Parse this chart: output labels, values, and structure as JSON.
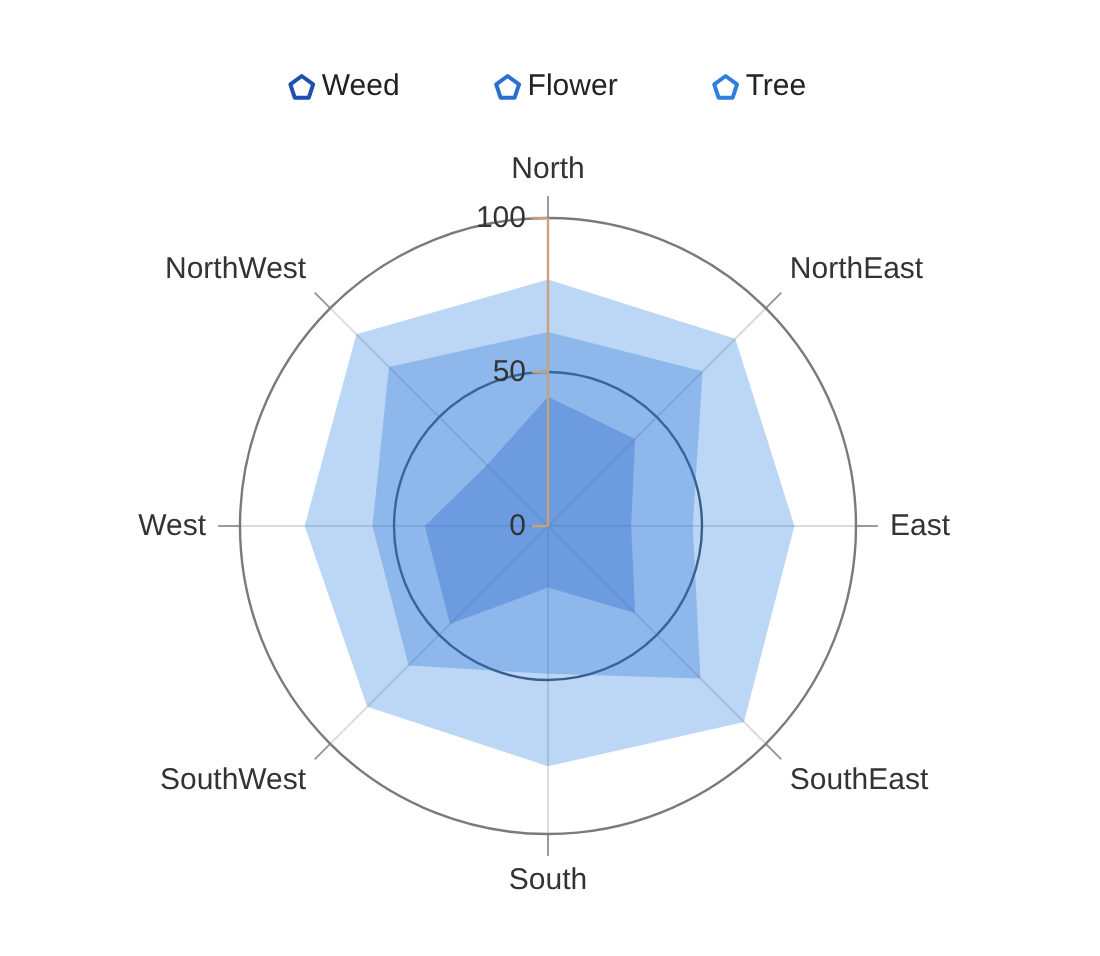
{
  "chart_data": {
    "type": "radar",
    "categories": [
      "North",
      "NorthEast",
      "East",
      "SouthEast",
      "South",
      "SouthWest",
      "West",
      "NorthWest"
    ],
    "series": [
      {
        "name": "Weed",
        "color": "#1f4fb0",
        "values": [
          42,
          40,
          27,
          40,
          20,
          45,
          40,
          28
        ]
      },
      {
        "name": "Flower",
        "color": "#2a6fd0",
        "values": [
          63,
          71,
          47,
          70,
          48,
          64,
          57,
          73
        ]
      },
      {
        "name": "Tree",
        "color": "#2f7fe0",
        "values": [
          80,
          86,
          80,
          90,
          78,
          83,
          79,
          88
        ]
      }
    ],
    "ylim": [
      0,
      100
    ],
    "yticks": [
      0,
      50,
      100
    ],
    "grid": true,
    "legend": "top"
  }
}
